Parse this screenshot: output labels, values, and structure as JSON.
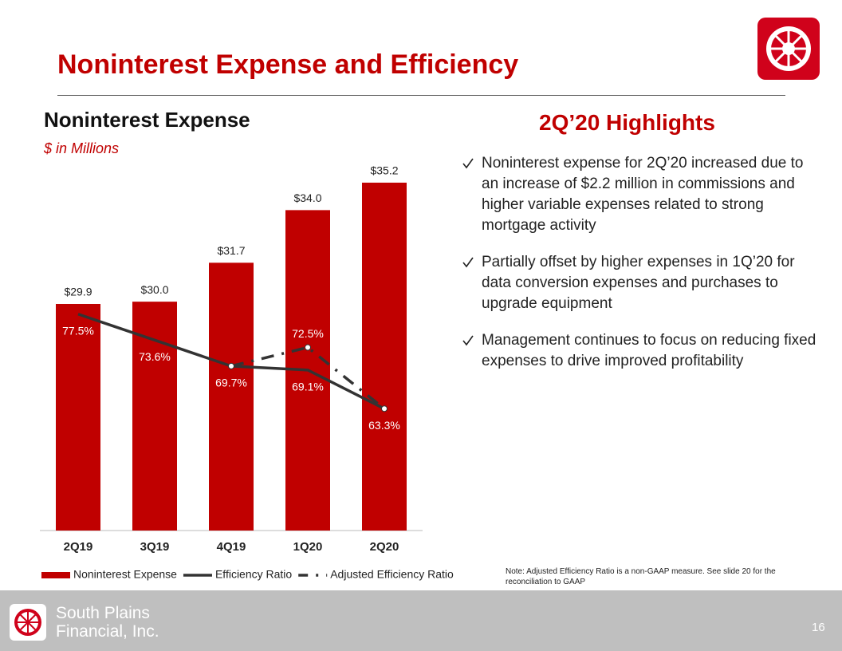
{
  "header": {
    "title": "Noninterest Expense and Efficiency"
  },
  "chart_data": {
    "type": "bar",
    "title": "Noninterest Expense",
    "subtitle": "$ in Millions",
    "categories": [
      "2Q19",
      "3Q19",
      "4Q19",
      "1Q20",
      "2Q20"
    ],
    "series": [
      {
        "name": "Noninterest Expense",
        "type": "bar",
        "color": "#c00000",
        "values": [
          29.9,
          30.0,
          31.7,
          34.0,
          35.2
        ],
        "value_labels": [
          "$29.9",
          "$30.0",
          "$31.7",
          "$34.0",
          "$35.2"
        ]
      },
      {
        "name": "Efficiency Ratio",
        "type": "line",
        "axis": "y2",
        "color": "#333333",
        "values": [
          77.5,
          73.6,
          69.7,
          69.1,
          63.3
        ],
        "value_labels": [
          "77.5%",
          "73.6%",
          "69.7%",
          "69.1%",
          "63.3%"
        ]
      },
      {
        "name": "Adjusted Efficiency Ratio",
        "type": "line",
        "dashed": true,
        "axis": "y2",
        "color": "#333333",
        "values": [
          null,
          null,
          69.7,
          72.5,
          63.3
        ],
        "value_labels": [
          null,
          null,
          null,
          "72.5%",
          null
        ]
      }
    ],
    "ylim": [
      20,
      36
    ],
    "y2lim": [
      45,
      100
    ],
    "legend": "bottom"
  },
  "highlights": {
    "title": "2Q’20 Highlights",
    "bullets": [
      "Noninterest expense for 2Q’20 increased due to an increase of $2.2 million in commissions and higher variable expenses related to strong mortgage activity",
      "Partially offset by higher expenses in 1Q’20 for data conversion expenses and purchases to upgrade equipment",
      "Management continues to focus on reducing fixed expenses to drive improved profitability"
    ]
  },
  "note": "Note: Adjusted Efficiency Ratio is a non-GAAP measure. See slide 20 for the reconciliation to GAAP",
  "footer": {
    "company_line1": "South Plains",
    "company_line2": "Financial, Inc.",
    "page_number": "16"
  }
}
